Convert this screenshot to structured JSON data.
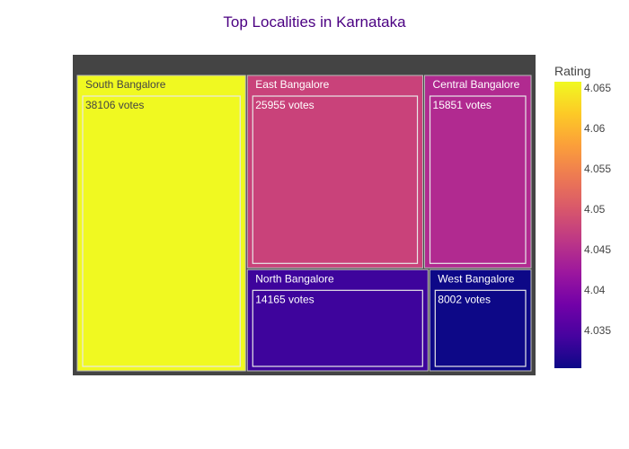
{
  "chart_data": {
    "type": "treemap",
    "title": "Top Localities in Karnataka",
    "colorbar": {
      "title": "Rating",
      "min": 4.0303,
      "max": 4.0658,
      "ticks": [
        "4.065",
        "4.06",
        "4.055",
        "4.05",
        "4.045",
        "4.04",
        "4.035"
      ],
      "tick_values": [
        4.065,
        4.06,
        4.055,
        4.05,
        4.045,
        4.04,
        4.035
      ],
      "colorscale": [
        "#0d0887",
        "#46039f",
        "#7201a8",
        "#9c179e",
        "#bd3786",
        "#d8576b",
        "#ed7953",
        "#fb9f3a",
        "#fdca26",
        "#f0f921"
      ]
    },
    "root_color": "#444444",
    "nodes": [
      {
        "name": "South Bangalore",
        "votes": 38106,
        "votes_label": "38106 votes",
        "rating": 4.0658,
        "color": "#f0f921"
      },
      {
        "name": "East Bangalore",
        "votes": 25955,
        "votes_label": "25955 votes",
        "rating": 4.049,
        "color": "#c9427a"
      },
      {
        "name": "Central Bangalore",
        "votes": 15851,
        "votes_label": "15851 votes",
        "rating": 4.0435,
        "color": "#b12a90"
      },
      {
        "name": "North Bangalore",
        "votes": 14165,
        "votes_label": "14165 votes",
        "rating": 4.0335,
        "color": "#3e049c"
      },
      {
        "name": "West Bangalore",
        "votes": 8002,
        "votes_label": "8002 votes",
        "rating": 4.0303,
        "color": "#0d0887"
      }
    ]
  }
}
